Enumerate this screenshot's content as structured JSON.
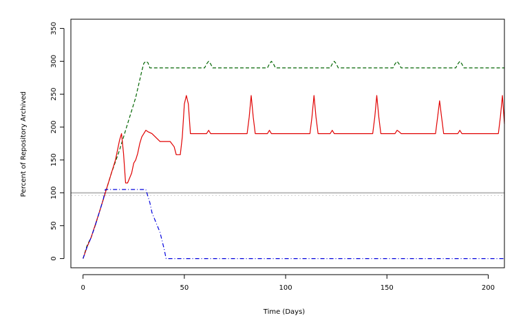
{
  "chart_data": {
    "type": "line",
    "title": "",
    "xlabel": "Time (Days)",
    "ylabel": "Percent of Repository Archived",
    "xlim": [
      -6,
      208
    ],
    "ylim": [
      -14,
      364
    ],
    "xticks": [
      0,
      50,
      100,
      150,
      200
    ],
    "yticks": [
      0,
      50,
      100,
      150,
      200,
      250,
      300,
      350
    ],
    "grid": false,
    "legend": "none",
    "reference_lines": [
      {
        "y": 100,
        "color": "#bdbdbd",
        "style": "solid"
      },
      {
        "y": 96,
        "color": "#cfcfcf",
        "style": "dotted"
      }
    ],
    "series": [
      {
        "color": "#006400",
        "style": "dashed",
        "points": [
          [
            0,
            0
          ],
          [
            1,
            10
          ],
          [
            2,
            20
          ],
          [
            4,
            32
          ],
          [
            6,
            50
          ],
          [
            10,
            90
          ],
          [
            14,
            130
          ],
          [
            18,
            165
          ],
          [
            22,
            205
          ],
          [
            26,
            245
          ],
          [
            29,
            285
          ],
          [
            30,
            297
          ],
          [
            31,
            300
          ],
          [
            32,
            298
          ],
          [
            33,
            290
          ],
          [
            60,
            290
          ],
          [
            61,
            296
          ],
          [
            62,
            300
          ],
          [
            63,
            296
          ],
          [
            64,
            290
          ],
          [
            91,
            290
          ],
          [
            92,
            296
          ],
          [
            93,
            300
          ],
          [
            94,
            296
          ],
          [
            95,
            290
          ],
          [
            122,
            290
          ],
          [
            123,
            296
          ],
          [
            124,
            300
          ],
          [
            125,
            296
          ],
          [
            126,
            290
          ],
          [
            153,
            290
          ],
          [
            154,
            296
          ],
          [
            155,
            300
          ],
          [
            156,
            296
          ],
          [
            157,
            290
          ],
          [
            184,
            290
          ],
          [
            185,
            296
          ],
          [
            186,
            300
          ],
          [
            187,
            296
          ],
          [
            188,
            290
          ],
          [
            208,
            290
          ]
        ]
      },
      {
        "color": "#e00000",
        "style": "solid",
        "points": [
          [
            0,
            0
          ],
          [
            2,
            18
          ],
          [
            4,
            32
          ],
          [
            8,
            70
          ],
          [
            12,
            110
          ],
          [
            16,
            150
          ],
          [
            18,
            180
          ],
          [
            19,
            190
          ],
          [
            20,
            160
          ],
          [
            21,
            115
          ],
          [
            22,
            115
          ],
          [
            24,
            130
          ],
          [
            25,
            145
          ],
          [
            26,
            150
          ],
          [
            27,
            160
          ],
          [
            28,
            175
          ],
          [
            29,
            185
          ],
          [
            30,
            190
          ],
          [
            31,
            195
          ],
          [
            32,
            193
          ],
          [
            34,
            190
          ],
          [
            38,
            178
          ],
          [
            43,
            178
          ],
          [
            45,
            170
          ],
          [
            46,
            158
          ],
          [
            48,
            158
          ],
          [
            49,
            185
          ],
          [
            50,
            235
          ],
          [
            51,
            248
          ],
          [
            52,
            235
          ],
          [
            53,
            190
          ],
          [
            61,
            190
          ],
          [
            62,
            195
          ],
          [
            63,
            190
          ],
          [
            81,
            190
          ],
          [
            82,
            215
          ],
          [
            83,
            248
          ],
          [
            84,
            215
          ],
          [
            85,
            190
          ],
          [
            91,
            190
          ],
          [
            92,
            195
          ],
          [
            93,
            190
          ],
          [
            112,
            190
          ],
          [
            113,
            215
          ],
          [
            114,
            248
          ],
          [
            115,
            215
          ],
          [
            116,
            190
          ],
          [
            122,
            190
          ],
          [
            123,
            195
          ],
          [
            124,
            190
          ],
          [
            143,
            190
          ],
          [
            144,
            215
          ],
          [
            145,
            248
          ],
          [
            146,
            215
          ],
          [
            147,
            190
          ],
          [
            154,
            190
          ],
          [
            155,
            195
          ],
          [
            156,
            193
          ],
          [
            157,
            190
          ],
          [
            174,
            190
          ],
          [
            175,
            215
          ],
          [
            176,
            240
          ],
          [
            177,
            215
          ],
          [
            178,
            190
          ],
          [
            185,
            190
          ],
          [
            186,
            195
          ],
          [
            187,
            190
          ],
          [
            205,
            190
          ],
          [
            206,
            215
          ],
          [
            207,
            248
          ],
          [
            208,
            205
          ]
        ]
      },
      {
        "color": "#0000dd",
        "style": "dashdot",
        "points": [
          [
            0,
            0
          ],
          [
            2,
            18
          ],
          [
            4,
            32
          ],
          [
            6,
            50
          ],
          [
            8,
            70
          ],
          [
            10,
            90
          ],
          [
            11,
            105
          ],
          [
            31,
            105
          ],
          [
            33,
            85
          ],
          [
            34,
            70
          ],
          [
            36,
            55
          ],
          [
            38,
            40
          ],
          [
            40,
            15
          ],
          [
            41,
            0
          ],
          [
            208,
            0
          ]
        ]
      }
    ]
  }
}
